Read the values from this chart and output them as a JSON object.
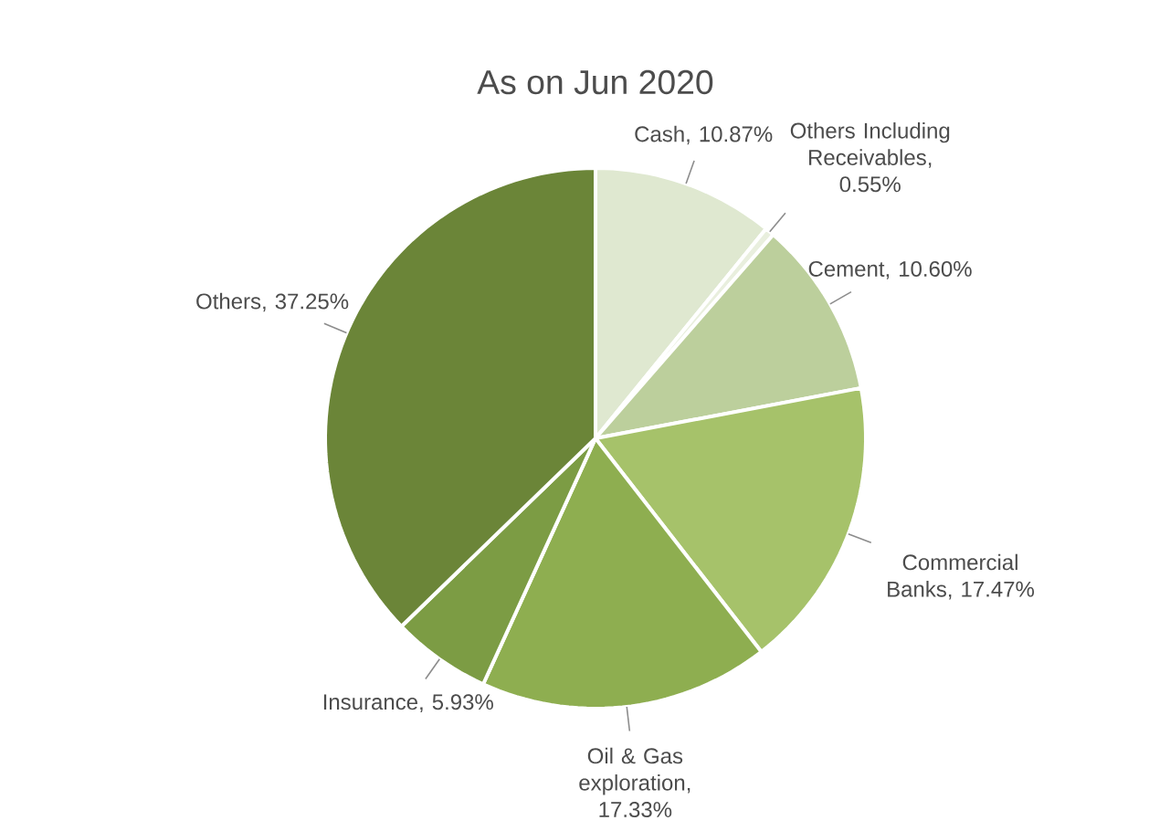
{
  "chart_data": {
    "type": "pie",
    "title": "As on Jun 2020",
    "categories": [
      "Cash",
      "Others Including Receivables",
      "Cement",
      "Commercial Banks",
      "Oil & Gas exploration",
      "Insurance",
      "Others"
    ],
    "values": [
      10.87,
      0.55,
      10.6,
      17.47,
      17.33,
      5.93,
      37.25
    ],
    "value_labels": [
      ", 10.87%",
      ", 0.55%",
      ", 10.60%",
      ", 17.47%",
      ", 17.33%",
      ", 5.93%",
      ", 37.25%"
    ],
    "colors": [
      "#dfe8d0",
      "#e9efde",
      "#bccf9c",
      "#a6c26a",
      "#8eae50",
      "#7c9c44",
      "#6b8538"
    ]
  }
}
